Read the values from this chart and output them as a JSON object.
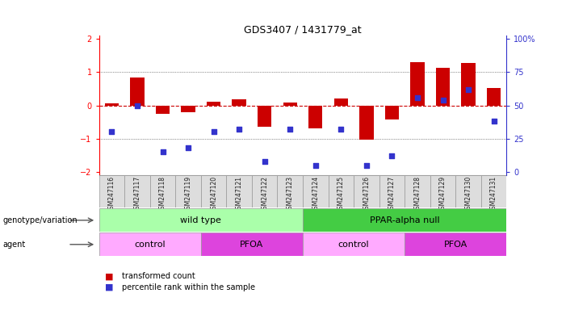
{
  "title": "GDS3407 / 1431779_at",
  "samples": [
    "GSM247116",
    "GSM247117",
    "GSM247118",
    "GSM247119",
    "GSM247120",
    "GSM247121",
    "GSM247122",
    "GSM247123",
    "GSM247124",
    "GSM247125",
    "GSM247126",
    "GSM247127",
    "GSM247128",
    "GSM247129",
    "GSM247130",
    "GSM247131"
  ],
  "red_bars": [
    0.07,
    0.85,
    -0.25,
    -0.2,
    0.12,
    0.18,
    -0.65,
    0.08,
    -0.68,
    0.22,
    -1.02,
    -0.42,
    1.3,
    1.12,
    1.28,
    0.52
  ],
  "blue_dots_pct": [
    30,
    50,
    15,
    18,
    30,
    32,
    8,
    32,
    5,
    32,
    5,
    12,
    56,
    54,
    62,
    38
  ],
  "ylim_left": [
    -2.1,
    2.1
  ],
  "yticks_left": [
    -2,
    -1,
    0,
    1,
    2
  ],
  "yticks_right_pct": [
    0,
    25,
    50,
    75,
    100
  ],
  "bar_color": "#cc0000",
  "dot_color": "#3333cc",
  "hline_zero_color": "#cc0000",
  "hline_other_color": "#333333",
  "genotype_groups": [
    {
      "label": "wild type",
      "start": 0,
      "end": 8,
      "color": "#aaffaa"
    },
    {
      "label": "PPAR-alpha null",
      "start": 8,
      "end": 16,
      "color": "#44cc44"
    }
  ],
  "agent_groups": [
    {
      "label": "control",
      "start": 0,
      "end": 4,
      "color": "#ffaaff"
    },
    {
      "label": "PFOA",
      "start": 4,
      "end": 8,
      "color": "#dd44dd"
    },
    {
      "label": "control",
      "start": 8,
      "end": 12,
      "color": "#ffaaff"
    },
    {
      "label": "PFOA",
      "start": 12,
      "end": 16,
      "color": "#dd44dd"
    }
  ],
  "genotype_label": "genotype/variation",
  "agent_label": "agent",
  "legend_items": [
    {
      "color": "#cc0000",
      "label": "transformed count"
    },
    {
      "color": "#3333cc",
      "label": "percentile rank within the sample"
    }
  ],
  "sample_box_color": "#dddddd"
}
